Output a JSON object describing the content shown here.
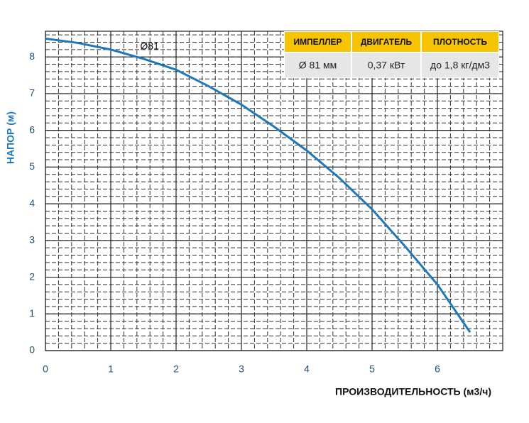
{
  "chart_data": {
    "type": "line",
    "x_label": "ПРОИЗВОДИТЕЛЬНОСТЬ (м3/ч)",
    "y_label": "НАПОР (м)",
    "annotation": "Ø81",
    "x": [
      0,
      0.5,
      1,
      1.5,
      2,
      2.5,
      3,
      3.5,
      4,
      4.5,
      5,
      5.5,
      6,
      6.5
    ],
    "series": [
      {
        "color": "#1f78b9",
        "values": [
          8.5,
          8.38,
          8.2,
          7.95,
          7.65,
          7.2,
          6.7,
          6.1,
          5.45,
          4.7,
          3.85,
          2.85,
          1.8,
          0.5
        ]
      }
    ],
    "xlim": [
      0,
      7
    ],
    "ylim": [
      0,
      8.7
    ],
    "xticks": [
      0,
      1,
      2,
      3,
      4,
      5,
      6
    ],
    "yticks": [
      0,
      1,
      2,
      3,
      4,
      5,
      6,
      7,
      8
    ],
    "grid": true,
    "minor_step": 0.2
  },
  "table": {
    "headers": [
      "ИМПЕЛЛЕР",
      "ДВИГАТЕЛЬ",
      "ПЛОТНОСТЬ"
    ],
    "rows": [
      [
        "Ø 81 мм",
        "0,37 кВт",
        "до 1,8 кг/дм3"
      ]
    ]
  }
}
